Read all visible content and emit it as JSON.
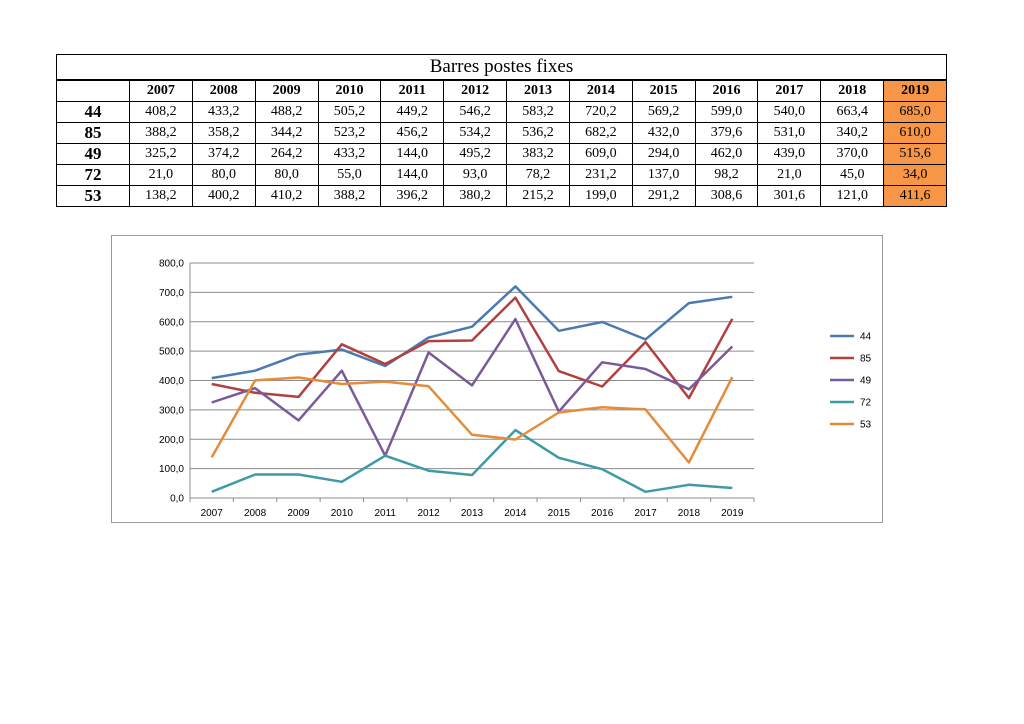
{
  "table": {
    "title": "Barres postes fixes",
    "years": [
      "2007",
      "2008",
      "2009",
      "2010",
      "2011",
      "2012",
      "2013",
      "2014",
      "2015",
      "2016",
      "2017",
      "2018",
      "2019"
    ],
    "rows": [
      {
        "label": "44",
        "values": [
          "408,2",
          "433,2",
          "488,2",
          "505,2",
          "449,2",
          "546,2",
          "583,2",
          "720,2",
          "569,2",
          "599,0",
          "540,0",
          "663,4",
          "685,0"
        ]
      },
      {
        "label": "85",
        "values": [
          "388,2",
          "358,2",
          "344,2",
          "523,2",
          "456,2",
          "534,2",
          "536,2",
          "682,2",
          "432,0",
          "379,6",
          "531,0",
          "340,2",
          "610,0"
        ]
      },
      {
        "label": "49",
        "values": [
          "325,2",
          "374,2",
          "264,2",
          "433,2",
          "144,0",
          "495,2",
          "383,2",
          "609,0",
          "294,0",
          "462,0",
          "439,0",
          "370,0",
          "515,6"
        ]
      },
      {
        "label": "72",
        "values": [
          "21,0",
          "80,0",
          "80,0",
          "55,0",
          "144,0",
          "93,0",
          "78,2",
          "231,2",
          "137,0",
          "98,2",
          "21,0",
          "45,0",
          "34,0"
        ]
      },
      {
        "label": "53",
        "values": [
          "138,2",
          "400,2",
          "410,2",
          "388,2",
          "396,2",
          "380,2",
          "215,2",
          "199,0",
          "291,2",
          "308,6",
          "301,6",
          "121,0",
          "411,6"
        ]
      }
    ],
    "highlight_color": "#f79646"
  },
  "chart_data": {
    "type": "line",
    "categories": [
      "2007",
      "2008",
      "2009",
      "2010",
      "2011",
      "2012",
      "2013",
      "2014",
      "2015",
      "2016",
      "2017",
      "2018",
      "2019"
    ],
    "ylim": [
      0,
      800
    ],
    "yticks": [
      "0,0",
      "100,0",
      "200,0",
      "300,0",
      "400,0",
      "500,0",
      "600,0",
      "700,0",
      "800,0"
    ],
    "grid": true,
    "legend": "right",
    "series": [
      {
        "name": "44",
        "color": "#4a7ab0",
        "values": [
          408.2,
          433.2,
          488.2,
          505.2,
          449.2,
          546.2,
          583.2,
          720.2,
          569.2,
          599.0,
          540.0,
          663.4,
          685.0
        ]
      },
      {
        "name": "85",
        "color": "#b0413e",
        "values": [
          388.2,
          358.2,
          344.2,
          523.2,
          456.2,
          534.2,
          536.2,
          682.2,
          432.0,
          379.6,
          531.0,
          340.2,
          610.0
        ]
      },
      {
        "name": "49",
        "color": "#7a5a9a",
        "values": [
          325.2,
          374.2,
          264.2,
          433.2,
          144.0,
          495.2,
          383.2,
          609.0,
          294.0,
          462.0,
          439.0,
          370.0,
          515.6
        ]
      },
      {
        "name": "72",
        "color": "#3f9aa8",
        "values": [
          21.0,
          80.0,
          80.0,
          55.0,
          144.0,
          93.0,
          78.2,
          231.2,
          137.0,
          98.2,
          21.0,
          45.0,
          34.0
        ]
      },
      {
        "name": "53",
        "color": "#e58c3c",
        "values": [
          138.2,
          400.2,
          410.2,
          388.2,
          396.2,
          380.2,
          215.2,
          199.0,
          291.2,
          308.6,
          301.6,
          121.0,
          411.6
        ]
      }
    ]
  }
}
